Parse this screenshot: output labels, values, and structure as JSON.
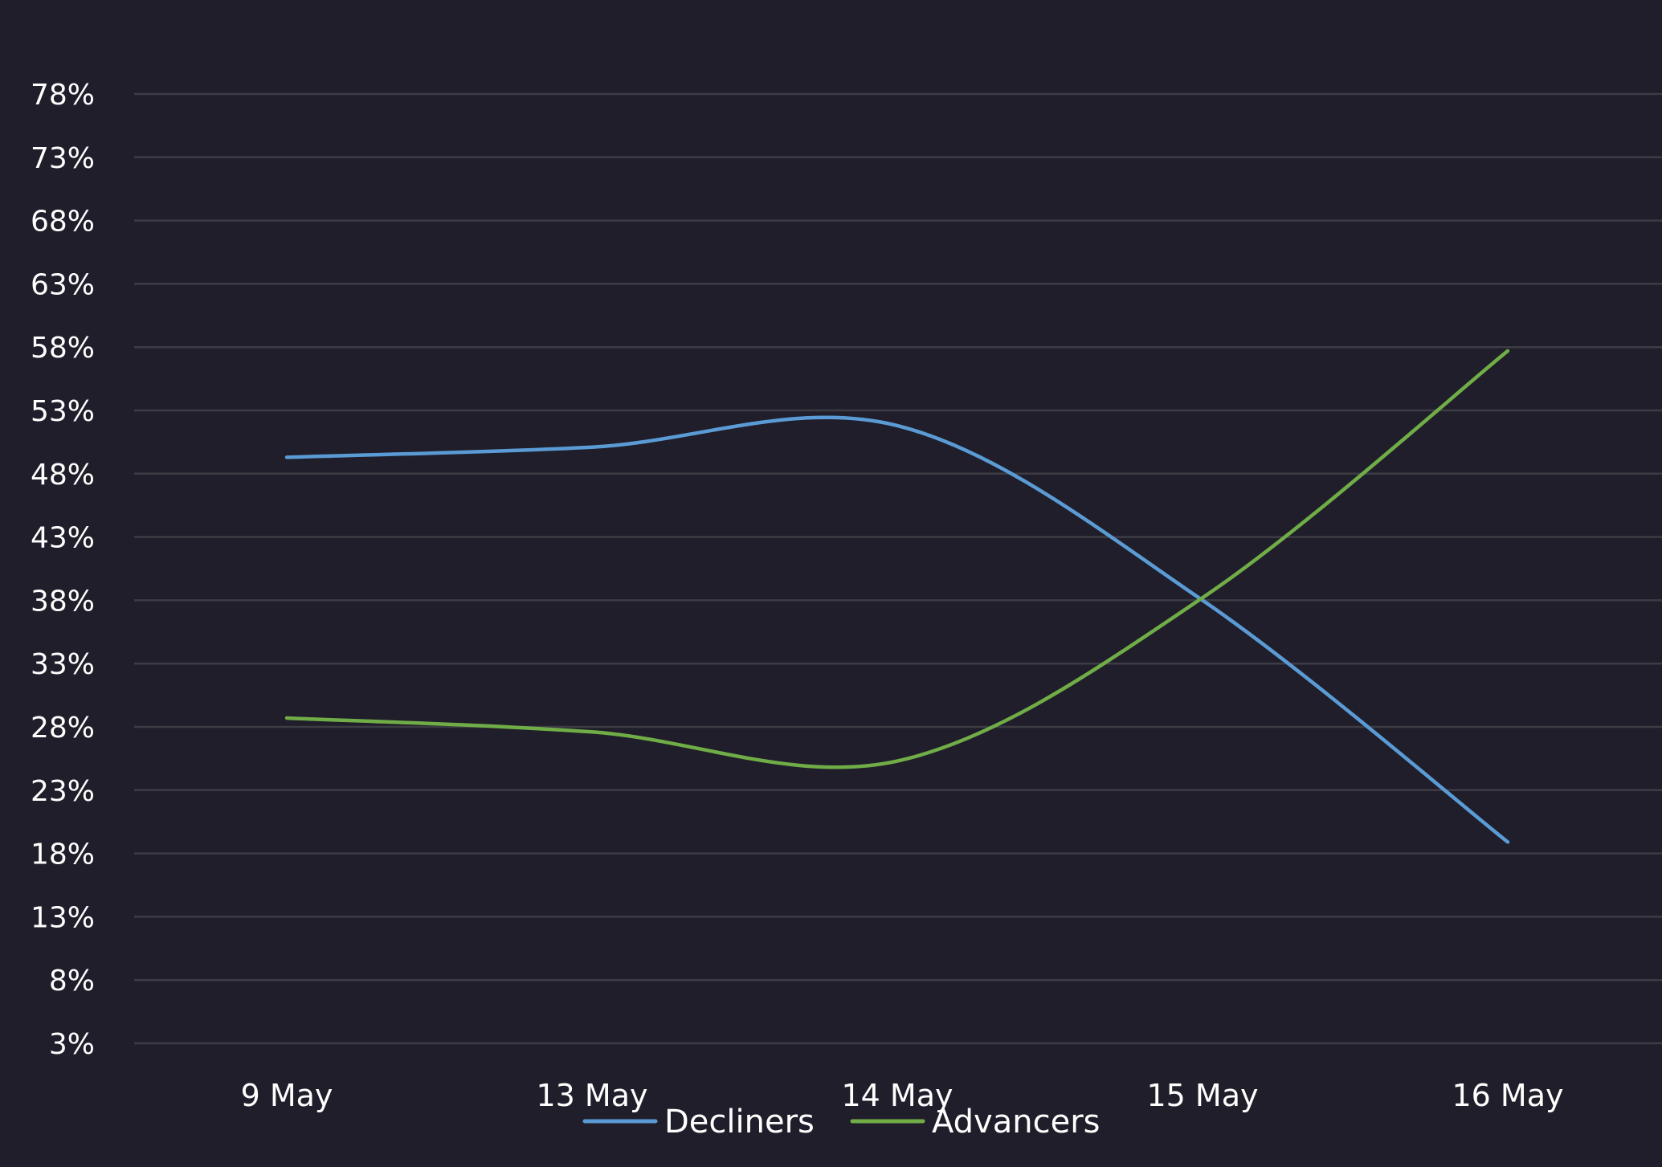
{
  "chart_data": {
    "type": "line",
    "categories": [
      "9 May",
      "13 May",
      "14 May",
      "15 May",
      "16 May"
    ],
    "series": [
      {
        "name": "Decliners",
        "color": "#5b9bd5",
        "values": [
          49.3,
          50.1,
          51.8,
          38.0,
          18.9
        ]
      },
      {
        "name": "Advancers",
        "color": "#70ad47",
        "values": [
          28.7,
          27.6,
          25.3,
          38.2,
          57.7
        ]
      }
    ],
    "y_ticks": [
      "3%",
      "8%",
      "13%",
      "18%",
      "23%",
      "28%",
      "33%",
      "38%",
      "43%",
      "48%",
      "53%",
      "58%",
      "63%",
      "68%",
      "73%",
      "78%"
    ],
    "ylim": [
      3,
      78
    ],
    "grid": true,
    "legend_position": "bottom"
  }
}
